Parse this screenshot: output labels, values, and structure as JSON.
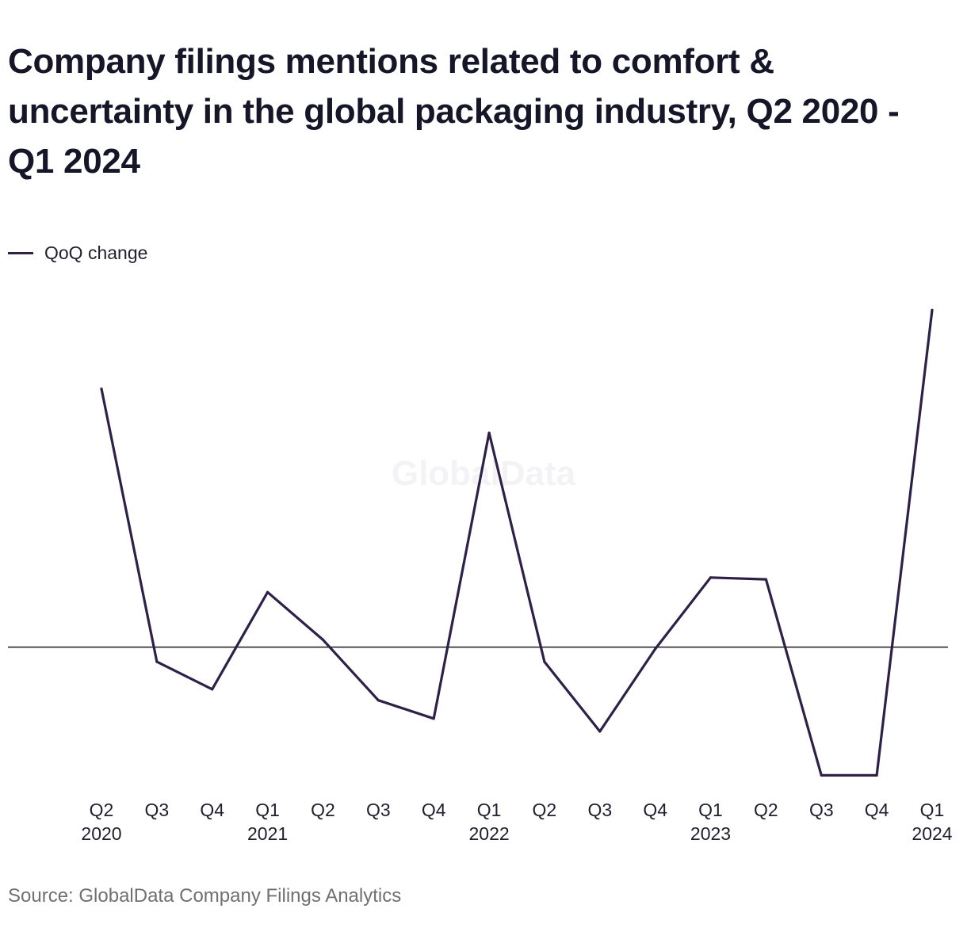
{
  "title": "Company filings mentions related to comfort & uncertainty in the global packaging industry, Q2 2020 - Q1 2024",
  "legend": {
    "label": "QoQ change",
    "color": "#2e2046"
  },
  "watermark": "GlobalData",
  "source": "Source: GlobalData Company Filings Analytics",
  "chart_data": {
    "type": "line",
    "title": "Company filings mentions related to comfort & uncertainty in the global packaging industry, Q2 2020 - Q1 2024",
    "xlabel": "",
    "ylabel": "",
    "categories": [
      [
        "Q2",
        "2020"
      ],
      [
        "Q3",
        ""
      ],
      [
        "Q4",
        ""
      ],
      [
        "Q1",
        "2021"
      ],
      [
        "Q2",
        ""
      ],
      [
        "Q3",
        ""
      ],
      [
        "Q4",
        ""
      ],
      [
        "Q1",
        "2022"
      ],
      [
        "Q2",
        ""
      ],
      [
        "Q3",
        ""
      ],
      [
        "Q4",
        ""
      ],
      [
        "Q1",
        "2023"
      ],
      [
        "Q2",
        ""
      ],
      [
        "Q3",
        ""
      ],
      [
        "Q4",
        ""
      ],
      [
        "Q1",
        "2024"
      ]
    ],
    "series": [
      {
        "name": "QoQ change",
        "color": "#2e2046",
        "values": [
          14.1,
          -0.8,
          -2.3,
          3.0,
          0.4,
          -2.9,
          -3.9,
          11.7,
          -0.8,
          -4.6,
          -0.1,
          3.8,
          3.7,
          -7.0,
          -7.0,
          18.4
        ]
      }
    ],
    "ylim": [
      -7.5,
      18.5
    ],
    "zero_line": true,
    "grid": false,
    "legend_position": "top-left"
  }
}
